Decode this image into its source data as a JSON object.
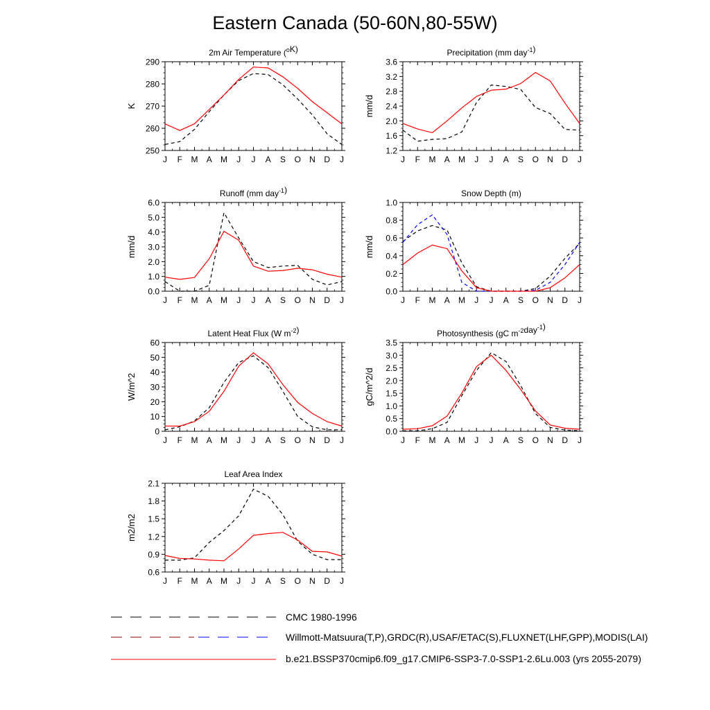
{
  "title": "Eastern Canada (50-60N,80-55W)",
  "colors": {
    "obs1": "#000000",
    "obs2_snow": "#0000ff",
    "model": "#ff0000"
  },
  "legend": [
    {
      "label": "CMC 1980-1996",
      "style": "black-dashed"
    },
    {
      "label": "Willmott-Matsuura(T,P),GRDC(R),USAF/ETAC(S),FLUXNET(LHF,GPP),MODIS(LAI)",
      "style": "mixed-dashed"
    },
    {
      "label": "b.e21.BSSP370cmip6.f09_g17.CMIP6-SSP3-7.0-SSP1-2.6Lu.003 (yrs 2055-2079)",
      "style": "red-solid"
    }
  ],
  "chart_data": [
    {
      "type": "line",
      "title": "2m Air Temperature (",
      "title_sup": "o",
      "title_after": "K)",
      "ylabel": "K",
      "x": [
        "J",
        "F",
        "M",
        "A",
        "M",
        "J",
        "J",
        "A",
        "S",
        "O",
        "N",
        "D",
        "J"
      ],
      "ylim": [
        250,
        290
      ],
      "yticks": [
        250,
        260,
        270,
        280,
        290
      ],
      "yticklabels": [
        "250",
        "260",
        "270",
        "280",
        "290"
      ],
      "series": [
        {
          "style": "obs1",
          "values": [
            252.7,
            254.0,
            259.5,
            267.5,
            275.0,
            281.5,
            284.7,
            284.2,
            279.6,
            273.2,
            266.0,
            257.5,
            252.7
          ]
        },
        {
          "style": "model",
          "values": [
            262.0,
            259.0,
            262.0,
            268.5,
            275.0,
            282.0,
            287.6,
            287.2,
            283.2,
            278.0,
            272.0,
            267.0,
            262.0
          ]
        }
      ]
    },
    {
      "type": "line",
      "title": "Precipitation (mm day",
      "title_sup": "-1",
      "title_after": ")",
      "ylabel": "mm/d",
      "x": [
        "J",
        "F",
        "M",
        "A",
        "M",
        "J",
        "J",
        "A",
        "S",
        "O",
        "N",
        "D",
        "J"
      ],
      "ylim": [
        1.2,
        3.6
      ],
      "yticks": [
        1.2,
        1.6,
        2.0,
        2.4,
        2.8,
        3.2,
        3.6
      ],
      "yticklabels": [
        "1.2",
        "1.6",
        "2.0",
        "2.4",
        "2.8",
        "3.2",
        "3.6"
      ],
      "series": [
        {
          "style": "obs1",
          "values": [
            1.75,
            1.45,
            1.5,
            1.52,
            1.7,
            2.5,
            2.97,
            2.93,
            2.85,
            2.36,
            2.2,
            1.77,
            1.75
          ]
        },
        {
          "style": "model",
          "values": [
            1.93,
            1.78,
            1.68,
            2.0,
            2.35,
            2.66,
            2.83,
            2.86,
            3.01,
            3.31,
            3.08,
            2.48,
            1.93
          ]
        }
      ]
    },
    {
      "type": "line",
      "title": "Runoff (mm day",
      "title_sup": "-1",
      "title_after": ")",
      "ylabel": "mm/d",
      "x": [
        "J",
        "F",
        "M",
        "A",
        "M",
        "J",
        "J",
        "A",
        "S",
        "O",
        "N",
        "D",
        "J"
      ],
      "ylim": [
        0,
        6
      ],
      "yticks": [
        0,
        1,
        2,
        3,
        4,
        5,
        6
      ],
      "yticklabels": [
        "0.0",
        "1.0",
        "2.0",
        "3.0",
        "4.0",
        "5.0",
        "6.0"
      ],
      "series": [
        {
          "style": "obs1",
          "values": [
            0.65,
            0.0,
            0.0,
            0.4,
            5.3,
            3.6,
            2.0,
            1.6,
            1.7,
            1.75,
            0.8,
            0.42,
            0.65
          ]
        },
        {
          "style": "model",
          "values": [
            0.95,
            0.8,
            0.93,
            2.2,
            4.05,
            3.45,
            1.7,
            1.35,
            1.4,
            1.55,
            1.45,
            1.15,
            0.95
          ]
        }
      ]
    },
    {
      "type": "line",
      "title": "Snow Depth (m)",
      "title_sup": "",
      "title_after": "",
      "ylabel": "mm/d",
      "x": [
        "J",
        "F",
        "M",
        "A",
        "M",
        "J",
        "J",
        "A",
        "S",
        "O",
        "N",
        "D",
        "J"
      ],
      "ylim": [
        0,
        1
      ],
      "yticks": [
        0,
        0.2,
        0.4,
        0.6,
        0.8,
        1.0
      ],
      "yticklabels": [
        "0.0",
        "0.2",
        "0.4",
        "0.6",
        "0.8",
        "1.0"
      ],
      "series": [
        {
          "style": "obs1",
          "values": [
            0.56,
            0.68,
            0.74,
            0.69,
            0.32,
            0.05,
            0.0,
            0.0,
            0.0,
            0.03,
            0.17,
            0.37,
            0.54
          ]
        },
        {
          "style": "obs2",
          "values": [
            0.55,
            0.75,
            0.86,
            0.64,
            0.1,
            0.0,
            0.0,
            0.0,
            0.0,
            0.01,
            0.1,
            0.3,
            0.55
          ]
        },
        {
          "style": "model",
          "values": [
            0.3,
            0.43,
            0.52,
            0.48,
            0.23,
            0.04,
            0.0,
            0.0,
            0.0,
            0.0,
            0.04,
            0.15,
            0.3
          ]
        }
      ]
    },
    {
      "type": "line",
      "title": "Latent Heat Flux (W m",
      "title_sup": "-2",
      "title_after": ")",
      "ylabel": "W/m^2",
      "x": [
        "J",
        "F",
        "M",
        "A",
        "M",
        "J",
        "J",
        "A",
        "S",
        "O",
        "N",
        "D",
        "J"
      ],
      "ylim": [
        0,
        60
      ],
      "yticks": [
        0,
        10,
        20,
        30,
        40,
        50,
        60
      ],
      "yticklabels": [
        "0",
        "10",
        "20",
        "30",
        "40",
        "50",
        "60"
      ],
      "series": [
        {
          "style": "obs1",
          "values": [
            1.0,
            3.0,
            7.0,
            16.0,
            33.0,
            46.5,
            51.0,
            43.0,
            27.0,
            10.0,
            3.0,
            1.0,
            1.0
          ]
        },
        {
          "style": "model",
          "values": [
            3.5,
            3.5,
            6.5,
            13.5,
            27.0,
            44.0,
            53.0,
            45.5,
            31.5,
            19.5,
            12.0,
            6.5,
            3.5
          ]
        }
      ]
    },
    {
      "type": "line",
      "title": "Photosynthesis (gC m",
      "title_sup": "-2",
      "title_after": "day",
      "title_sup2": "-1",
      "title_after2": ")",
      "ylabel": "gC/m^2/d",
      "x": [
        "J",
        "F",
        "M",
        "A",
        "M",
        "J",
        "J",
        "A",
        "S",
        "O",
        "N",
        "D",
        "J"
      ],
      "ylim": [
        0,
        3.5
      ],
      "yticks": [
        0,
        0.5,
        1.0,
        1.5,
        2.0,
        2.5,
        3.0,
        3.5
      ],
      "yticklabels": [
        "0.0",
        "0.5",
        "1.0",
        "1.5",
        "2.0",
        "2.5",
        "3.0",
        "3.5"
      ],
      "series": [
        {
          "style": "obs1",
          "values": [
            0.02,
            0.02,
            0.1,
            0.35,
            1.4,
            2.4,
            3.1,
            2.75,
            1.8,
            0.7,
            0.15,
            0.05,
            0.02
          ]
        },
        {
          "style": "model",
          "values": [
            0.08,
            0.1,
            0.22,
            0.6,
            1.5,
            2.55,
            3.0,
            2.4,
            1.65,
            0.8,
            0.25,
            0.12,
            0.08
          ]
        }
      ]
    },
    {
      "type": "line",
      "title": "Leaf Area Index",
      "title_sup": "",
      "title_after": "",
      "ylabel": "m2/m2",
      "x": [
        "J",
        "F",
        "M",
        "A",
        "M",
        "J",
        "J",
        "A",
        "S",
        "O",
        "N",
        "D",
        "J"
      ],
      "ylim": [
        0.6,
        2.1
      ],
      "yticks": [
        0.6,
        0.9,
        1.2,
        1.5,
        1.8,
        2.1
      ],
      "yticklabels": [
        "0.6",
        "0.9",
        "1.2",
        "1.5",
        "1.8",
        "2.1"
      ],
      "series": [
        {
          "style": "obs1",
          "values": [
            0.8,
            0.8,
            0.84,
            1.1,
            1.3,
            1.55,
            2.0,
            1.88,
            1.57,
            1.12,
            0.9,
            0.81,
            0.81
          ]
        },
        {
          "style": "model",
          "values": [
            0.88,
            0.83,
            0.82,
            0.8,
            0.79,
            0.99,
            1.22,
            1.25,
            1.27,
            1.14,
            0.95,
            0.94,
            0.87
          ]
        }
      ]
    }
  ]
}
